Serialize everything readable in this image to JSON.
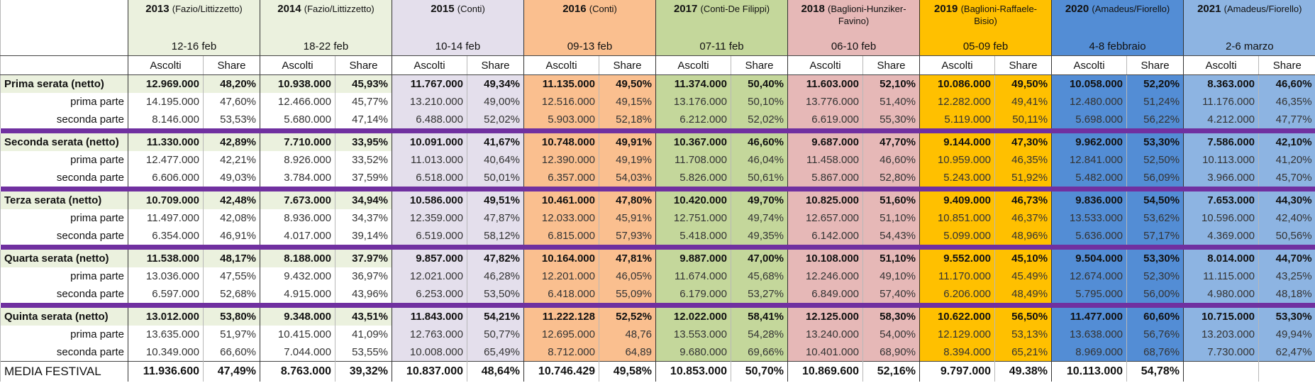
{
  "columns": [
    {
      "year": "2013",
      "hosts": "(Fazio/Littizzetto)",
      "dates": "12-16 feb"
    },
    {
      "year": "2014",
      "hosts": "(Fazio/Littizzetto)",
      "dates": "18-22 feb"
    },
    {
      "year": "2015",
      "hosts": "(Conti)",
      "dates": "10-14 feb"
    },
    {
      "year": "2016",
      "hosts": "(Conti)",
      "dates": "09-13 feb"
    },
    {
      "year": "2017",
      "hosts": "(Conti-De Filippi)",
      "dates": "07-11 feb"
    },
    {
      "year": "2018",
      "hosts": "(Baglioni-Hunziker-Favino)",
      "dates": "06-10 feb"
    },
    {
      "year": "2019",
      "hosts": "(Baglioni-Raffaele-Bisio)",
      "dates": "05-09 feb"
    },
    {
      "year": "2020",
      "hosts": "(Amadeus/Fiorello)",
      "dates": "4-8 febbraio"
    },
    {
      "year": "2021",
      "hosts": "(Amadeus/Fiorello)",
      "dates": "2-6 marzo"
    }
  ],
  "sub_header": [
    "Ascolti",
    "Share"
  ],
  "serate": [
    {
      "label": "Prima serata (netto)",
      "values": [
        [
          "12.969.000",
          "48,20%"
        ],
        [
          "10.938.000",
          "45,93%"
        ],
        [
          "11.767.000",
          "49,34%"
        ],
        [
          "11.135.000",
          "49,50%"
        ],
        [
          "11.374.000",
          "50,40%"
        ],
        [
          "11.603.000",
          "52,10%"
        ],
        [
          "10.086.000",
          "49,50%"
        ],
        [
          "10.058.000",
          "52,20%"
        ],
        [
          "8.363.000",
          "46,60%"
        ]
      ],
      "parts": [
        {
          "label": "prima parte",
          "values": [
            [
              "14.195.000",
              "47,60%"
            ],
            [
              "12.466.000",
              "45,77%"
            ],
            [
              "13.210.000",
              "49,00%"
            ],
            [
              "12.516.000",
              "49,15%"
            ],
            [
              "13.176.000",
              "50,10%"
            ],
            [
              "13.776.000",
              "51,40%"
            ],
            [
              "12.282.000",
              "49,41%"
            ],
            [
              "12.480.000",
              "51,24%"
            ],
            [
              "11.176.000",
              "46,35%"
            ]
          ]
        },
        {
          "label": "seconda parte",
          "values": [
            [
              "8.146.000",
              "53,53%"
            ],
            [
              "5.680.000",
              "47,14%"
            ],
            [
              "6.488.000",
              "52,02%"
            ],
            [
              "5.903.000",
              "52,18%"
            ],
            [
              "6.212.000",
              "52,02%"
            ],
            [
              "6.619.000",
              "55,30%"
            ],
            [
              "5.119.000",
              "50,11%"
            ],
            [
              "5.698.000",
              "56,22%"
            ],
            [
              "4.212.000",
              "47,77%"
            ]
          ]
        }
      ]
    },
    {
      "label": "Seconda serata (netto)",
      "values": [
        [
          "11.330.000",
          "42,89%"
        ],
        [
          "7.710.000",
          "33,95%"
        ],
        [
          "10.091.000",
          "41,67%"
        ],
        [
          "10.748.000",
          "49,91%"
        ],
        [
          "10.367.000",
          "46,60%"
        ],
        [
          "9.687.000",
          "47,70%"
        ],
        [
          "9.144.000",
          "47,30%"
        ],
        [
          "9.962.000",
          "53,30%"
        ],
        [
          "7.586.000",
          "42,10%"
        ]
      ],
      "parts": [
        {
          "label": "prima parte",
          "values": [
            [
              "12.477.000",
              "42,21%"
            ],
            [
              "8.926.000",
              "33,52%"
            ],
            [
              "11.013.000",
              "40,64%"
            ],
            [
              "12.390.000",
              "49,19%"
            ],
            [
              "11.708.000",
              "46,04%"
            ],
            [
              "11.458.000",
              "46,60%"
            ],
            [
              "10.959.000",
              "46,35%"
            ],
            [
              "12.841.000",
              "52,50%"
            ],
            [
              "10.113.000",
              "41,20%"
            ]
          ]
        },
        {
          "label": "seconda parte",
          "values": [
            [
              "6.606.000",
              "49,03%"
            ],
            [
              "3.784.000",
              "37,59%"
            ],
            [
              "6.518.000",
              "50,01%"
            ],
            [
              "6.357.000",
              "54,03%"
            ],
            [
              "5.826.000",
              "50,61%"
            ],
            [
              "5.867.000",
              "52,80%"
            ],
            [
              "5.243.000",
              "51,92%"
            ],
            [
              "5.482.000",
              "56,09%"
            ],
            [
              "3.966.000",
              "45,70%"
            ]
          ]
        }
      ]
    },
    {
      "label": "Terza serata (netto)",
      "values": [
        [
          "10.709.000",
          "42,48%"
        ],
        [
          "7.673.000",
          "34,94%"
        ],
        [
          "10.586.000",
          "49,51%"
        ],
        [
          "10.461.000",
          "47,80%"
        ],
        [
          "10.420.000",
          "49,70%"
        ],
        [
          "10.825.000",
          "51,60%"
        ],
        [
          "9.409.000",
          "46,73%"
        ],
        [
          "9.836.000",
          "54,50%"
        ],
        [
          "7.653.000",
          "44,30%"
        ]
      ],
      "parts": [
        {
          "label": "prima parte",
          "values": [
            [
              "11.497.000",
              "42,08%"
            ],
            [
              "8.936.000",
              "34,37%"
            ],
            [
              "12.359.000",
              "47,87%"
            ],
            [
              "12.033.000",
              "45,91%"
            ],
            [
              "12.751.000",
              "49,74%"
            ],
            [
              "12.657.000",
              "51,10%"
            ],
            [
              "10.851.000",
              "46,37%"
            ],
            [
              "13.533.000",
              "53,62%"
            ],
            [
              "10.596.000",
              "42,40%"
            ]
          ]
        },
        {
          "label": "seconda parte",
          "values": [
            [
              "6.354.000",
              "46,91%"
            ],
            [
              "4.017.000",
              "39,14%"
            ],
            [
              "6.519.000",
              "58,12%"
            ],
            [
              "6.815.000",
              "57,93%"
            ],
            [
              "5.418.000",
              "49,35%"
            ],
            [
              "6.142.000",
              "54,43%"
            ],
            [
              "5.099.000",
              "48,96%"
            ],
            [
              "5.636.000",
              "57,17%"
            ],
            [
              "4.369.000",
              "50,56%"
            ]
          ]
        }
      ]
    },
    {
      "label": "Quarta serata (netto)",
      "values": [
        [
          "11.538.000",
          "48,17%"
        ],
        [
          "8.188.000",
          "37.97%"
        ],
        [
          "9.857.000",
          "47,82%"
        ],
        [
          "10.164.000",
          "47,81%"
        ],
        [
          "9.887.000",
          "47,00%"
        ],
        [
          "10.108.000",
          "51,10%"
        ],
        [
          "9.552.000",
          "45,10%"
        ],
        [
          "9.504.000",
          "53,30%"
        ],
        [
          "8.014.000",
          "44,70%"
        ]
      ],
      "parts": [
        {
          "label": "prima parte",
          "values": [
            [
              "13.036.000",
              "47,55%"
            ],
            [
              "9.432.000",
              "36,97%"
            ],
            [
              "12.021.000",
              "46,28%"
            ],
            [
              "12.201.000",
              "46,05%"
            ],
            [
              "11.674.000",
              "45,68%"
            ],
            [
              "12.246.000",
              "49,10%"
            ],
            [
              "11.170.000",
              "45.49%"
            ],
            [
              "12.674.000",
              "52,30%"
            ],
            [
              "11.115.000",
              "43,25%"
            ]
          ]
        },
        {
          "label": "seconda parte",
          "values": [
            [
              "6.597.000",
              "52,68%"
            ],
            [
              "4.915.000",
              "43,96%"
            ],
            [
              "6.253.000",
              "53,50%"
            ],
            [
              "6.418.000",
              "55,09%"
            ],
            [
              "6.179.000",
              "53,27%"
            ],
            [
              "6.849.000",
              "57,40%"
            ],
            [
              "6.206.000",
              "48,49%"
            ],
            [
              "5.795.000",
              "56,00%"
            ],
            [
              "4.980.000",
              "48,18%"
            ]
          ]
        }
      ]
    },
    {
      "label": "Quinta serata (netto)",
      "values": [
        [
          "13.012.000",
          "53,80%"
        ],
        [
          "9.348.000",
          "43,51%"
        ],
        [
          "11.843.000",
          "54,21%"
        ],
        [
          "11.222.128",
          "52,52%"
        ],
        [
          "12.022.000",
          "58,41%"
        ],
        [
          "12.125.000",
          "58,30%"
        ],
        [
          "10.622.000",
          "56,50%"
        ],
        [
          "11.477.000",
          "60,60%"
        ],
        [
          "10.715.000",
          "53,30%"
        ]
      ],
      "parts": [
        {
          "label": "prima parte",
          "values": [
            [
              "13.635.000",
              "51,97%"
            ],
            [
              "10.415.000",
              "41,09%"
            ],
            [
              "12.763.000",
              "50,77%"
            ],
            [
              "12.695.000",
              "48,76"
            ],
            [
              "13.553.000",
              "54,28%"
            ],
            [
              "13.240.000",
              "54,00%"
            ],
            [
              "12.129.000",
              "53,13%"
            ],
            [
              "13.638.000",
              "56,76%"
            ],
            [
              "13.203.000",
              "49,94%"
            ]
          ]
        },
        {
          "label": "seconda parte",
          "values": [
            [
              "10.349.000",
              "66,60%"
            ],
            [
              "7.044.000",
              "53,55%"
            ],
            [
              "10.008.000",
              "65,49%"
            ],
            [
              "8.712.000",
              "64,89"
            ],
            [
              "9.680.000",
              "69,66%"
            ],
            [
              "10.401.000",
              "68,90%"
            ],
            [
              "8.394.000",
              "65,21%"
            ],
            [
              "8.969.000",
              "68,76%"
            ],
            [
              "7.730.000",
              "62,47%"
            ]
          ]
        }
      ]
    }
  ],
  "media": {
    "label": "MEDIA FESTIVAL",
    "values": [
      [
        "11.936.600",
        "47,49%"
      ],
      [
        "8.763.000",
        "39,32%"
      ],
      [
        "10.837.000",
        "48,64%"
      ],
      [
        "10.746.429",
        "49,58%"
      ],
      [
        "10.853.000",
        "50,70%"
      ],
      [
        "10.869.600",
        "52,16%"
      ],
      [
        "9.797.000",
        "49.38%"
      ],
      [
        "10.113.000",
        "54,78%"
      ]
    ]
  }
}
